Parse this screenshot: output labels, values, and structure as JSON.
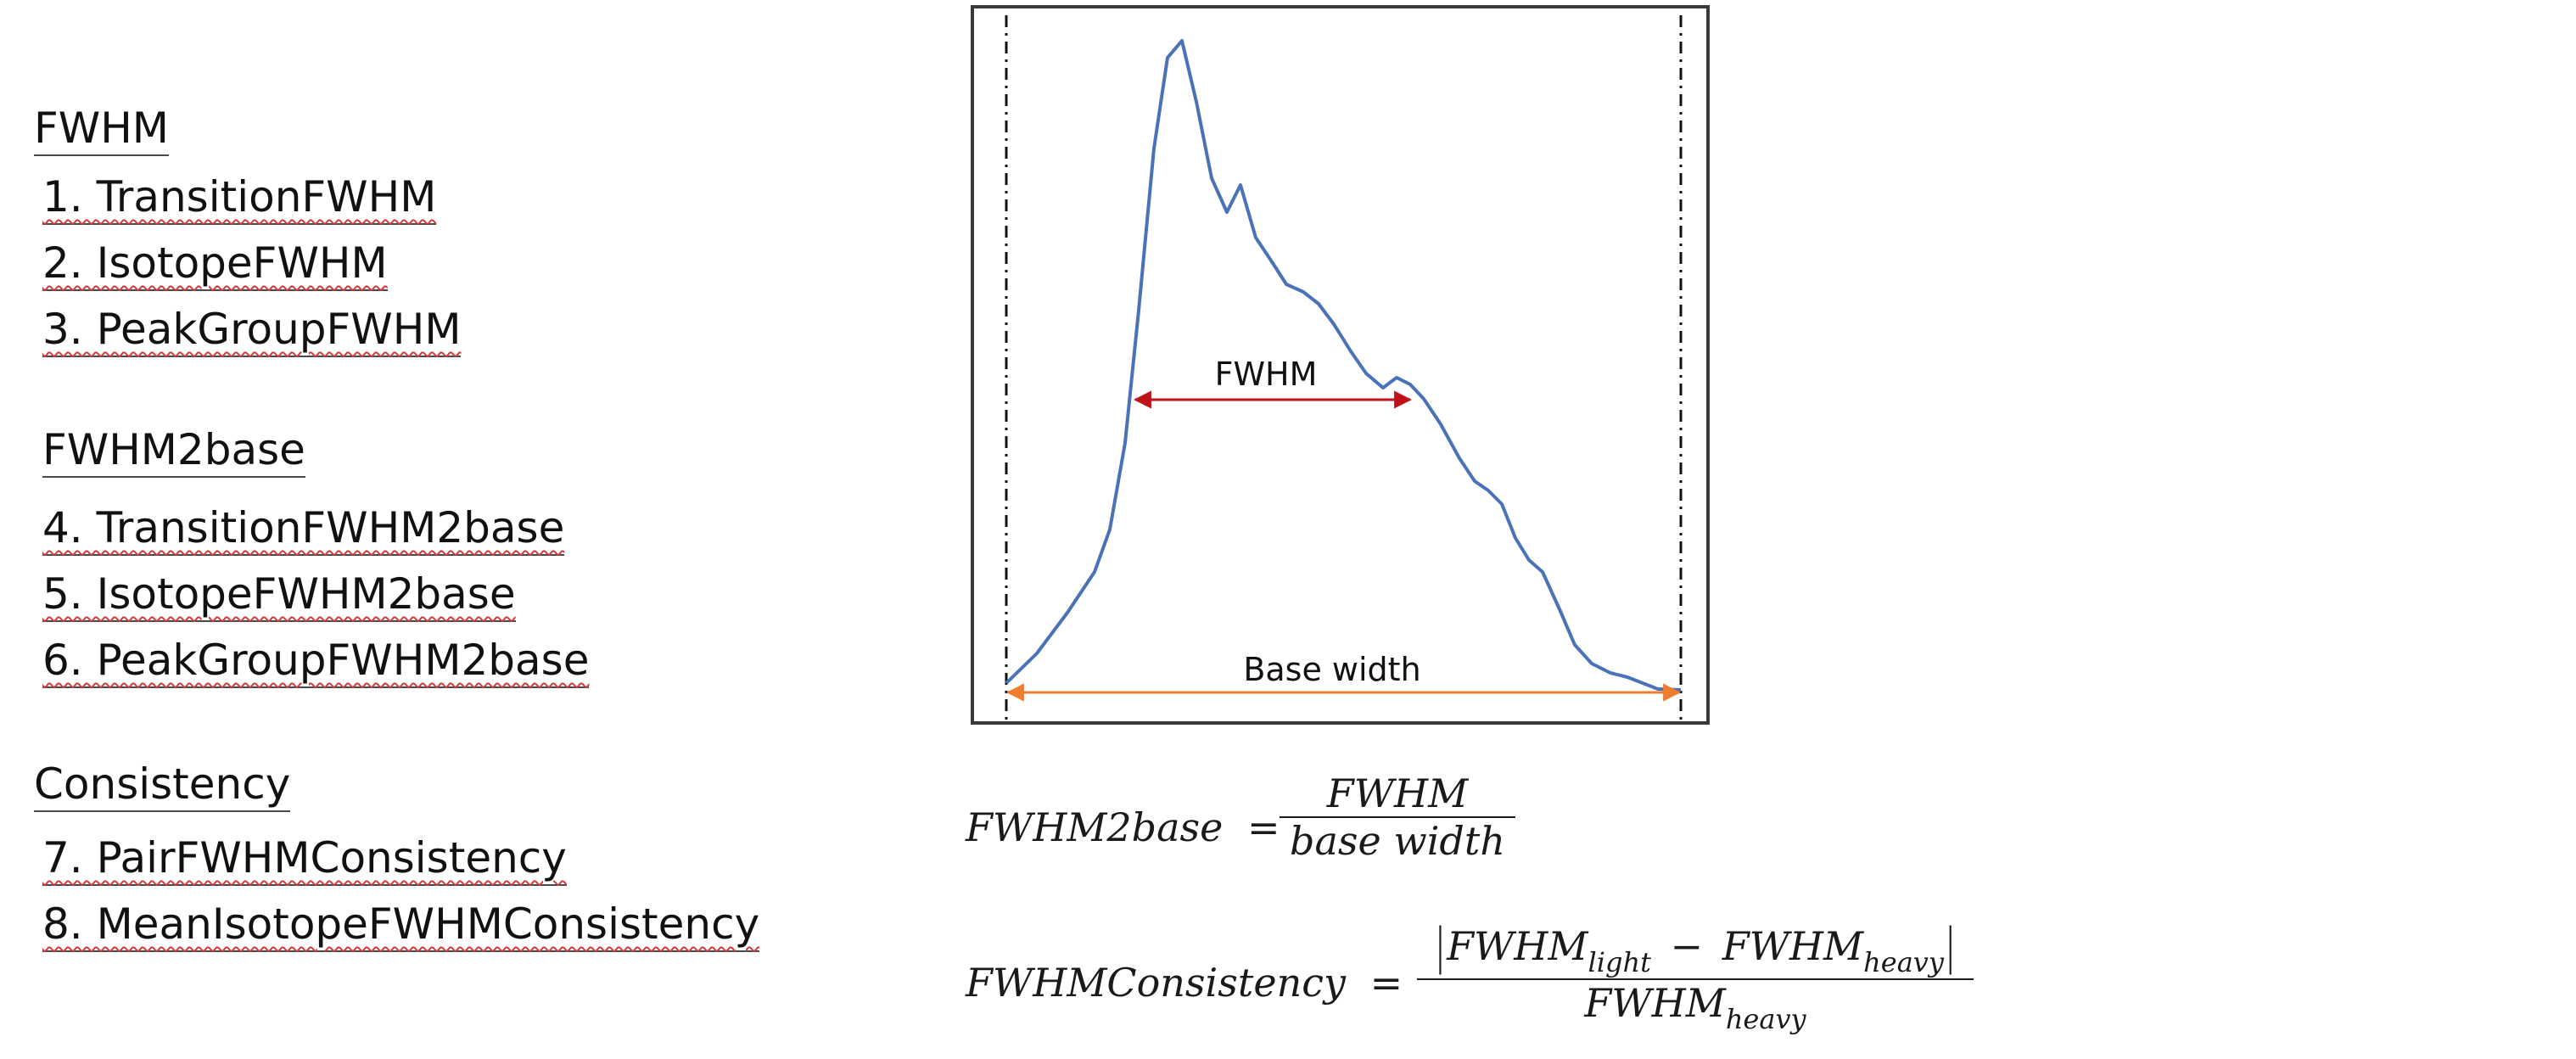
{
  "lists": {
    "fwhm_heading": "FWHM",
    "fwhm_items": [
      "1. TransitionFWHM",
      "2. IsotopeFWHM",
      "3. PeakGroupFWHM"
    ],
    "fwhm2base_heading": "FWHM2base",
    "fwhm2base_items": [
      "4. TransitionFWHM2base",
      "5. IsotopeFWHM2base",
      "6. PeakGroupFWHM2base"
    ],
    "consistency_heading": "Consistency",
    "consistency_items": [
      "7. PairFWHMConsistency",
      "8. MeanIsotopeFWHMConsistency"
    ]
  },
  "diagram": {
    "fwhm_label": "FWHM",
    "base_width_label": "Base width",
    "colors": {
      "curve": "#4a72b8",
      "fwhm_arrow": "#c0121b",
      "base_arrow": "#ed7d31",
      "frame": "#3a3a3a"
    }
  },
  "formulas": {
    "fwhm2base": {
      "lhs": "FWHM2base",
      "equals": "=",
      "numerator": "FWHM",
      "denominator": "base width"
    },
    "consistency": {
      "lhs": "FWHMConsistency",
      "equals": "=",
      "num_base_1": "FWHM",
      "num_sub_1": "light",
      "minus": "−",
      "num_base_2": "FWHM",
      "num_sub_2": "heavy",
      "den_base": "FWHM",
      "den_sub": "heavy"
    }
  }
}
